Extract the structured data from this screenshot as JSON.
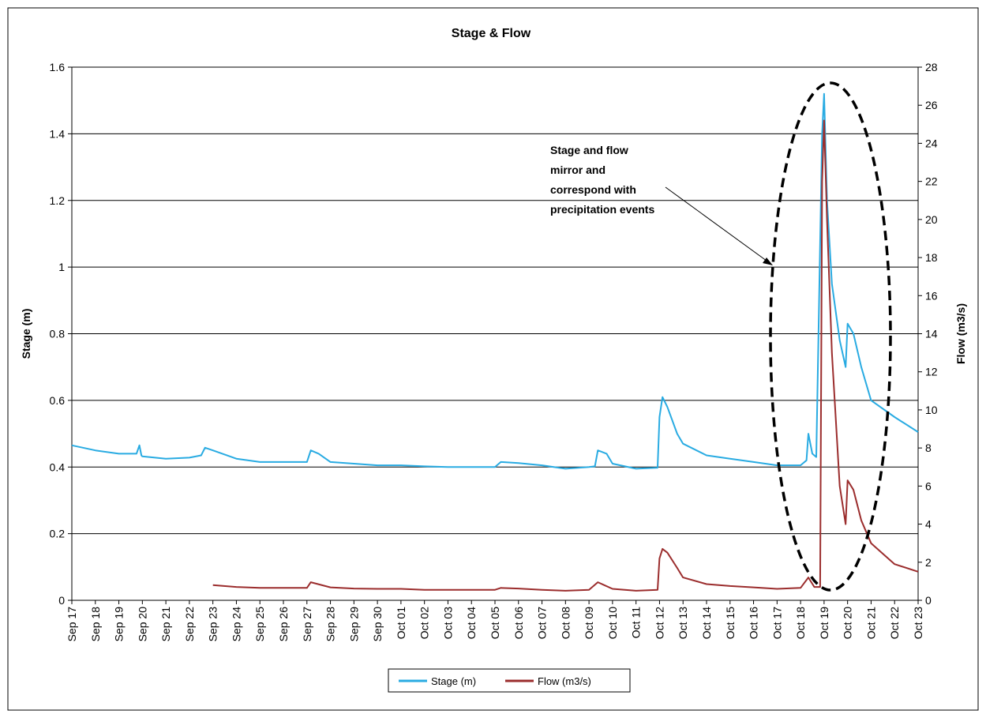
{
  "chart_data": {
    "type": "line",
    "title": "Stage & Flow",
    "ylabel": "Stage (m)",
    "y2label": "Flow (m3/s)",
    "ylim": [
      0,
      1.6
    ],
    "y2lim": [
      0,
      28
    ],
    "y_ticks": [
      "0",
      "0.2",
      "0.4",
      "0.6",
      "0.8",
      "1",
      "1.2",
      "1.4",
      "1.6"
    ],
    "y2_ticks": [
      "0",
      "2",
      "4",
      "6",
      "8",
      "10",
      "12",
      "14",
      "16",
      "18",
      "20",
      "22",
      "24",
      "26",
      "28"
    ],
    "x_tick_labels": [
      "Sep 17",
      "Sep 18",
      "Sep 19",
      "Sep 20",
      "Sep 21",
      "Sep 22",
      "Sep 23",
      "Sep 24",
      "Sep 25",
      "Sep 26",
      "Sep 27",
      "Sep 28",
      "Sep 29",
      "Sep 30",
      "Oct 01",
      "Oct 02",
      "Oct 03",
      "Oct 04",
      "Oct 05",
      "Oct 06",
      "Oct 07",
      "Oct 08",
      "Oct 09",
      "Oct 10",
      "Oct 11",
      "Oct 12",
      "Oct 13",
      "Oct 14",
      "Oct 15",
      "Oct 16",
      "Oct 17",
      "Oct 18",
      "Oct 19",
      "Oct 20",
      "Oct 21",
      "Oct 22",
      "Oct 23"
    ],
    "grid": "horizontal",
    "legend_position": "bottom",
    "annotation": {
      "lines": [
        "Stage and flow",
        "mirror and",
        "correspond with",
        "precipitation events"
      ]
    },
    "series": [
      {
        "name": "Stage (m)",
        "axis": "left",
        "color": "#29abe2",
        "points": [
          [
            "Sep 17",
            0.465
          ],
          [
            "Sep 18",
            0.45
          ],
          [
            "Sep 19",
            0.44
          ],
          [
            "Sep 19 18:00",
            0.44
          ],
          [
            "Sep 19 21:00",
            0.465
          ],
          [
            "Sep 19 23:00",
            0.435
          ],
          [
            "Sep 20",
            0.432
          ],
          [
            "Sep 21",
            0.425
          ],
          [
            "Sep 22",
            0.428
          ],
          [
            "Sep 22 12:00",
            0.435
          ],
          [
            "Sep 22 16:00",
            0.458
          ],
          [
            "Sep 23",
            0.45
          ],
          [
            "Sep 24",
            0.425
          ],
          [
            "Sep 25",
            0.415
          ],
          [
            "Sep 26",
            0.415
          ],
          [
            "Sep 27",
            0.415
          ],
          [
            "Sep 27 04:00",
            0.45
          ],
          [
            "Sep 27 12:00",
            0.44
          ],
          [
            "Sep 28",
            0.415
          ],
          [
            "Sep 29",
            0.41
          ],
          [
            "Sep 30",
            0.405
          ],
          [
            "Oct 01",
            0.405
          ],
          [
            "Oct 02",
            0.402
          ],
          [
            "Oct 03",
            0.4
          ],
          [
            "Oct 04",
            0.4
          ],
          [
            "Oct 05",
            0.4
          ],
          [
            "Oct 05 06:00",
            0.415
          ],
          [
            "Oct 06",
            0.412
          ],
          [
            "Oct 07",
            0.405
          ],
          [
            "Oct 08",
            0.395
          ],
          [
            "Oct 09",
            0.4
          ],
          [
            "Oct 09 06:00",
            0.402
          ],
          [
            "Oct 09 09:00",
            0.45
          ],
          [
            "Oct 09 18:00",
            0.44
          ],
          [
            "Oct 10",
            0.41
          ],
          [
            "Oct 11",
            0.395
          ],
          [
            "Oct 11 22:00",
            0.398
          ],
          [
            "Oct 12",
            0.55
          ],
          [
            "Oct 12 03:00",
            0.61
          ],
          [
            "Oct 12 08:00",
            0.58
          ],
          [
            "Oct 12 18:00",
            0.5
          ],
          [
            "Oct 13",
            0.47
          ],
          [
            "Oct 14",
            0.435
          ],
          [
            "Oct 15",
            0.425
          ],
          [
            "Oct 16",
            0.415
          ],
          [
            "Oct 17",
            0.405
          ],
          [
            "Oct 18",
            0.405
          ],
          [
            "Oct 18 06:00",
            0.42
          ],
          [
            "Oct 18 08:00",
            0.5
          ],
          [
            "Oct 18 12:00",
            0.44
          ],
          [
            "Oct 18 16:00",
            0.43
          ],
          [
            "Oct 18 22:00",
            1.4
          ],
          [
            "Oct 19",
            1.52
          ],
          [
            "Oct 19 03:00",
            1.2
          ],
          [
            "Oct 19 08:00",
            0.95
          ],
          [
            "Oct 19 16:00",
            0.78
          ],
          [
            "Oct 19 22:00",
            0.7
          ],
          [
            "Oct 20",
            0.83
          ],
          [
            "Oct 20 06:00",
            0.8
          ],
          [
            "Oct 20 14:00",
            0.7
          ],
          [
            "Oct 21",
            0.6
          ],
          [
            "Oct 22",
            0.55
          ],
          [
            "Oct 23",
            0.505
          ]
        ]
      },
      {
        "name": "Flow (m3/s)",
        "axis": "right",
        "color": "#9b2d2d",
        "points": [
          [
            "Sep 23",
            0.8
          ],
          [
            "Sep 24",
            0.7
          ],
          [
            "Sep 25",
            0.65
          ],
          [
            "Sep 26",
            0.65
          ],
          [
            "Sep 27",
            0.65
          ],
          [
            "Sep 27 04:00",
            0.95
          ],
          [
            "Sep 28",
            0.68
          ],
          [
            "Sep 29",
            0.62
          ],
          [
            "Sep 30",
            0.6
          ],
          [
            "Oct 01",
            0.6
          ],
          [
            "Oct 02",
            0.55
          ],
          [
            "Oct 03",
            0.55
          ],
          [
            "Oct 04",
            0.55
          ],
          [
            "Oct 05",
            0.55
          ],
          [
            "Oct 05 06:00",
            0.65
          ],
          [
            "Oct 06",
            0.62
          ],
          [
            "Oct 07",
            0.55
          ],
          [
            "Oct 08",
            0.5
          ],
          [
            "Oct 09",
            0.55
          ],
          [
            "Oct 09 09:00",
            0.95
          ],
          [
            "Oct 10",
            0.6
          ],
          [
            "Oct 11",
            0.5
          ],
          [
            "Oct 11 22:00",
            0.55
          ],
          [
            "Oct 12",
            2.2
          ],
          [
            "Oct 12 03:00",
            2.7
          ],
          [
            "Oct 12 08:00",
            2.5
          ],
          [
            "Oct 12 18:00",
            1.7
          ],
          [
            "Oct 13",
            1.2
          ],
          [
            "Oct 14",
            0.85
          ],
          [
            "Oct 15",
            0.75
          ],
          [
            "Oct 16",
            0.68
          ],
          [
            "Oct 17",
            0.6
          ],
          [
            "Oct 18",
            0.65
          ],
          [
            "Oct 18 08:00",
            1.2
          ],
          [
            "Oct 18 14:00",
            0.7
          ],
          [
            "Oct 18 20:00",
            0.7
          ],
          [
            "Oct 18 22:00",
            22.0
          ],
          [
            "Oct 19",
            25.2
          ],
          [
            "Oct 19 03:00",
            20.0
          ],
          [
            "Oct 19 08:00",
            13.0
          ],
          [
            "Oct 19 16:00",
            6.0
          ],
          [
            "Oct 19 22:00",
            4.0
          ],
          [
            "Oct 20",
            6.3
          ],
          [
            "Oct 20 06:00",
            5.8
          ],
          [
            "Oct 20 14:00",
            4.2
          ],
          [
            "Oct 21",
            3.0
          ],
          [
            "Oct 22",
            1.9
          ],
          [
            "Oct 23",
            1.5
          ]
        ]
      }
    ]
  }
}
